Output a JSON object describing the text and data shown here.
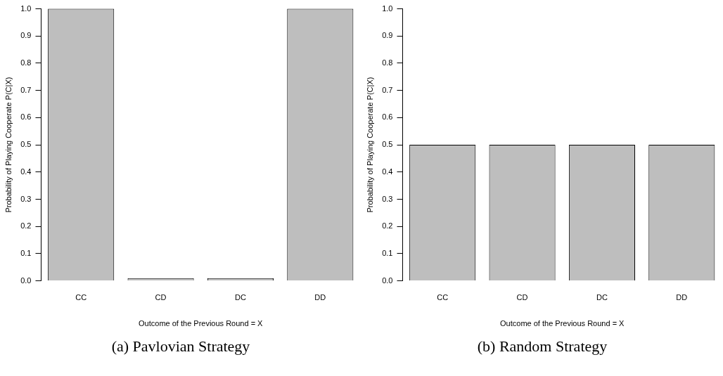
{
  "chart_data": [
    {
      "type": "bar",
      "title": "(a) Pavlovian Strategy",
      "xlabel": "Outcome of the Previous Round = X",
      "ylabel": "Probability of Playing Cooperate P(C|X)",
      "categories": [
        "CC",
        "CD",
        "DC",
        "DD"
      ],
      "values": [
        1.0,
        0.01,
        0.01,
        1.0
      ],
      "color": "#bebebe",
      "ylim": [
        0,
        1
      ],
      "yticks": [
        {
          "value": 0,
          "label": "0.0"
        },
        {
          "value": 0.1,
          "label": "0.1"
        },
        {
          "value": 0.2,
          "label": "0.2"
        },
        {
          "value": 0.3,
          "label": "0.3"
        },
        {
          "value": 0.4,
          "label": "0.4"
        },
        {
          "value": 0.5,
          "label": "0.5"
        },
        {
          "value": 0.6,
          "label": "0.6"
        },
        {
          "value": 0.7,
          "label": "0.7"
        },
        {
          "value": 0.8,
          "label": "0.8"
        },
        {
          "value": 0.9,
          "label": "0.9"
        },
        {
          "value": 1,
          "label": "1.0"
        }
      ],
      "grid": false,
      "legend": false
    },
    {
      "type": "bar",
      "title": "(b) Random Strategy",
      "xlabel": "Outcome of the Previous Round = X",
      "ylabel": "Probability of Playing Cooperate P(C|X)",
      "categories": [
        "CC",
        "CD",
        "DC",
        "DD"
      ],
      "values": [
        0.5,
        0.5,
        0.5,
        0.5
      ],
      "color": "#bebebe",
      "ylim": [
        0,
        1
      ],
      "yticks": [
        {
          "value": 0,
          "label": "0.0"
        },
        {
          "value": 0.1,
          "label": "0.1"
        },
        {
          "value": 0.2,
          "label": "0.2"
        },
        {
          "value": 0.3,
          "label": "0.3"
        },
        {
          "value": 0.4,
          "label": "0.4"
        },
        {
          "value": 0.5,
          "label": "0.5"
        },
        {
          "value": 0.6,
          "label": "0.6"
        },
        {
          "value": 0.7,
          "label": "0.7"
        },
        {
          "value": 0.8,
          "label": "0.8"
        },
        {
          "value": 0.9,
          "label": "0.9"
        },
        {
          "value": 1,
          "label": "1.0"
        }
      ],
      "grid": false,
      "legend": false
    }
  ]
}
